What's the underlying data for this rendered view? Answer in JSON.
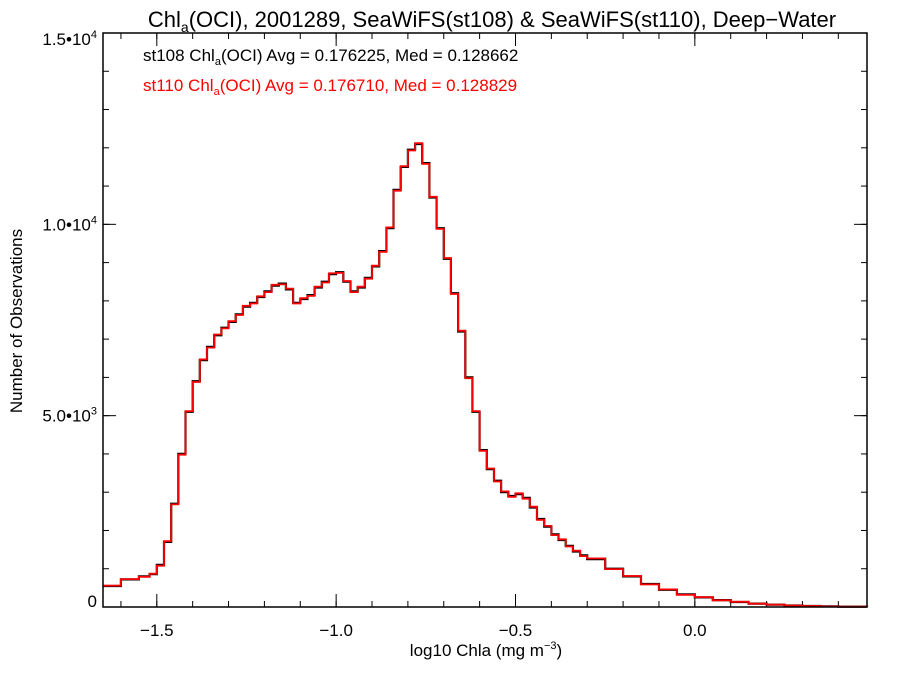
{
  "chart_data": {
    "type": "line",
    "title": {
      "prefix": "Chl",
      "sub": "a",
      "suffix": "(OCI), 2001289, SeaWiFS(st108) & SeaWiFS(st110), Deep−Water"
    },
    "xlabel": {
      "main": "log10 Chla (mg m",
      "sup": "−3",
      "close": ")"
    },
    "ylabel": "Number of Observations",
    "xlim": [
      -1.65,
      0.48
    ],
    "ylim": [
      0,
      15000
    ],
    "x_ticks": [
      {
        "value": -1.5,
        "label": "−1.5"
      },
      {
        "value": -1.0,
        "label": "−1.0"
      },
      {
        "value": -0.5,
        "label": "−0.5"
      },
      {
        "value": 0.0,
        "label": "0.0"
      }
    ],
    "x_minor_step": 0.1,
    "y_ticks": [
      {
        "value": 0,
        "mant": "0",
        "exp": ""
      },
      {
        "value": 5000,
        "mant": "5.0•10",
        "exp": "3"
      },
      {
        "value": 10000,
        "mant": "1.0•10",
        "exp": "4"
      },
      {
        "value": 15000,
        "mant": "1.5•10",
        "exp": "4"
      }
    ],
    "y_minor_step": 1000,
    "annotations": [
      {
        "prefix": "st108 Chl",
        "sub": "a",
        "suffix": "(OCI) Avg = 0.176225, Med = 0.128662",
        "color": "#000000"
      },
      {
        "prefix": "st110 Chl",
        "sub": "a",
        "suffix": "(OCI) Avg = 0.176710, Med = 0.128829",
        "color": "#ff0000"
      }
    ],
    "series": [
      {
        "color": "#000000",
        "x": [
          -1.65,
          -1.6,
          -1.55,
          -1.52,
          -1.5,
          -1.48,
          -1.46,
          -1.44,
          -1.42,
          -1.4,
          -1.38,
          -1.36,
          -1.34,
          -1.32,
          -1.3,
          -1.28,
          -1.26,
          -1.24,
          -1.22,
          -1.2,
          -1.18,
          -1.16,
          -1.14,
          -1.12,
          -1.1,
          -1.08,
          -1.06,
          -1.04,
          -1.02,
          -1.0,
          -0.98,
          -0.96,
          -0.94,
          -0.92,
          -0.9,
          -0.88,
          -0.86,
          -0.84,
          -0.82,
          -0.8,
          -0.78,
          -0.76,
          -0.74,
          -0.72,
          -0.7,
          -0.68,
          -0.66,
          -0.64,
          -0.62,
          -0.6,
          -0.58,
          -0.56,
          -0.54,
          -0.52,
          -0.5,
          -0.48,
          -0.46,
          -0.44,
          -0.42,
          -0.4,
          -0.38,
          -0.36,
          -0.34,
          -0.32,
          -0.3,
          -0.25,
          -0.2,
          -0.15,
          -0.1,
          -0.05,
          0.0,
          0.05,
          0.1,
          0.15,
          0.2,
          0.25,
          0.3,
          0.35,
          0.4,
          0.48
        ],
        "y": [
          550,
          720,
          800,
          860,
          1100,
          1700,
          2700,
          4000,
          5100,
          5900,
          6450,
          6800,
          7100,
          7300,
          7450,
          7650,
          7850,
          7950,
          8100,
          8250,
          8400,
          8450,
          8300,
          7950,
          8050,
          8150,
          8350,
          8500,
          8700,
          8750,
          8500,
          8250,
          8350,
          8600,
          8900,
          9300,
          9900,
          10900,
          11500,
          11950,
          12100,
          11600,
          10700,
          9900,
          9100,
          8200,
          7200,
          6000,
          5100,
          4100,
          3600,
          3300,
          3000,
          2900,
          2950,
          2850,
          2600,
          2300,
          2100,
          1900,
          1750,
          1600,
          1450,
          1350,
          1250,
          1000,
          800,
          600,
          450,
          330,
          250,
          180,
          130,
          90,
          60,
          40,
          25,
          15,
          8,
          5
        ]
      },
      {
        "color": "#ff0000",
        "x": [
          -1.65,
          -1.6,
          -1.55,
          -1.52,
          -1.5,
          -1.48,
          -1.46,
          -1.44,
          -1.42,
          -1.4,
          -1.38,
          -1.36,
          -1.34,
          -1.32,
          -1.3,
          -1.28,
          -1.26,
          -1.24,
          -1.22,
          -1.2,
          -1.18,
          -1.16,
          -1.14,
          -1.12,
          -1.1,
          -1.08,
          -1.06,
          -1.04,
          -1.02,
          -1.0,
          -0.98,
          -0.96,
          -0.94,
          -0.92,
          -0.9,
          -0.88,
          -0.86,
          -0.84,
          -0.82,
          -0.8,
          -0.78,
          -0.76,
          -0.74,
          -0.72,
          -0.7,
          -0.68,
          -0.66,
          -0.64,
          -0.62,
          -0.6,
          -0.58,
          -0.56,
          -0.54,
          -0.52,
          -0.5,
          -0.48,
          -0.46,
          -0.44,
          -0.42,
          -0.4,
          -0.38,
          -0.36,
          -0.34,
          -0.32,
          -0.3,
          -0.25,
          -0.2,
          -0.15,
          -0.1,
          -0.05,
          0.0,
          0.05,
          0.1,
          0.15,
          0.2,
          0.25,
          0.3,
          0.35,
          0.4,
          0.48
        ],
        "y": [
          560,
          730,
          790,
          870,
          1080,
          1720,
          2680,
          3980,
          5120,
          5880,
          6470,
          6780,
          7120,
          7280,
          7470,
          7630,
          7870,
          7930,
          8120,
          8230,
          8420,
          8430,
          8320,
          7930,
          8070,
          8130,
          8370,
          8480,
          8720,
          8730,
          8520,
          8230,
          8370,
          8580,
          8920,
          9280,
          9920,
          10880,
          11520,
          11930,
          12120,
          11580,
          10720,
          9880,
          9120,
          8180,
          7220,
          5980,
          5120,
          4080,
          3620,
          3280,
          3020,
          2880,
          2970,
          2830,
          2620,
          2280,
          2120,
          1880,
          1770,
          1580,
          1470,
          1330,
          1270,
          990,
          810,
          590,
          460,
          320,
          255,
          175,
          135,
          85,
          62,
          38,
          26,
          14,
          9,
          4
        ]
      }
    ]
  }
}
